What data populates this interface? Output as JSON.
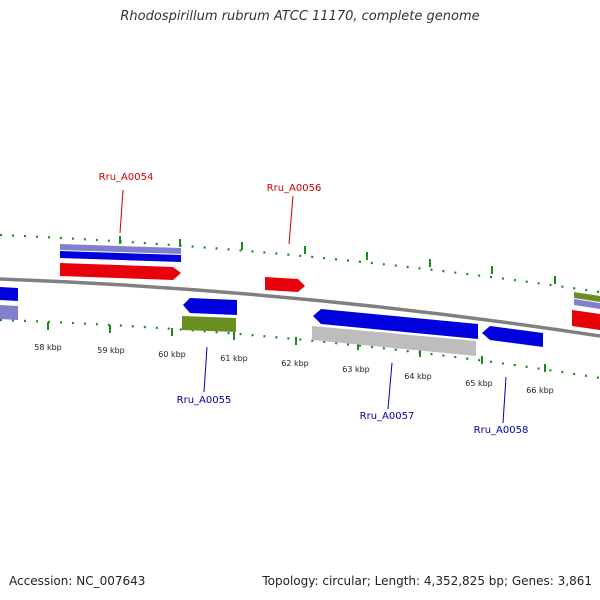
{
  "title": "Rhodospirillum rubrum ATCC 11170, complete genome",
  "footer": {
    "accession": "Accession: NC_007643",
    "stats": "Topology: circular; Length: 4,352,825 bp; Genes: 3,861"
  },
  "colors": {
    "plus_strand_cds": "#e8000b",
    "minus_strand_cds": "#0000dd",
    "blast_hit_purple": "#8080cc",
    "olive_feature": "#6b8e23",
    "grey_feature": "#bdbdbd",
    "tick_green": "#1a8a1a",
    "backbone": "#808080",
    "label_red": "#cc0000",
    "label_blue": "#0000aa"
  },
  "scale_ticks": [
    "58 kbp",
    "59 kbp",
    "60 kbp",
    "61 kbp",
    "62 kbp",
    "63 kbp",
    "64 kbp",
    "65 kbp",
    "66 kbp"
  ],
  "gene_labels": [
    {
      "name": "Rru_A0054",
      "strand": "plus"
    },
    {
      "name": "Rru_A0056",
      "strand": "plus"
    },
    {
      "name": "Rru_A0055",
      "strand": "minus"
    },
    {
      "name": "Rru_A0057",
      "strand": "minus"
    },
    {
      "name": "Rru_A0058",
      "strand": "minus"
    }
  ]
}
